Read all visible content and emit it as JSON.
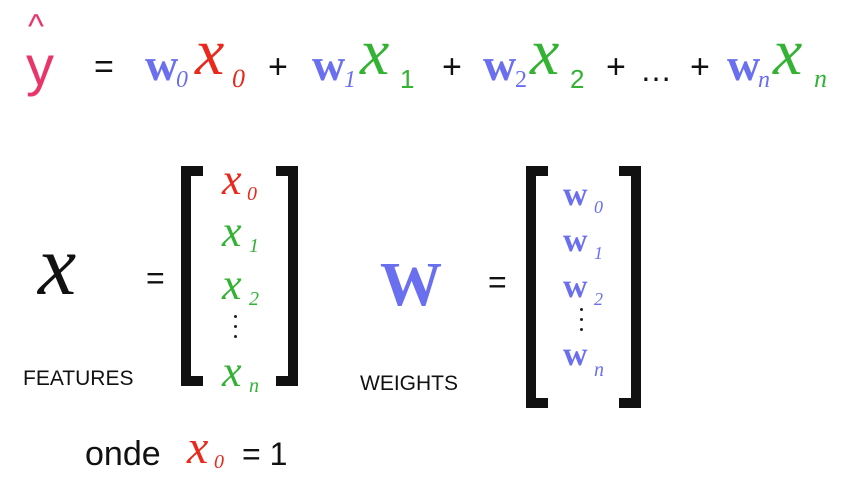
{
  "equation": {
    "yhat": "y",
    "hat": "^",
    "equals": "=",
    "plus": "+",
    "ellipsis": "…",
    "w": "w",
    "x": "x",
    "sub0": "0",
    "sub1": "1",
    "sub2": "2",
    "subn": "n"
  },
  "features": {
    "symbol": "x",
    "equals": "=",
    "label": "FEATURES",
    "items": [
      {
        "base": "x",
        "sub": "0"
      },
      {
        "base": "x",
        "sub": "1"
      },
      {
        "base": "x",
        "sub": "2"
      },
      {
        "base": "x",
        "sub": "n"
      }
    ]
  },
  "weights": {
    "symbol": "W",
    "equals": "=",
    "label": "WEIGHTS",
    "items": [
      {
        "base": "w",
        "sub": "0"
      },
      {
        "base": "w",
        "sub": "1"
      },
      {
        "base": "w",
        "sub": "2"
      },
      {
        "base": "w",
        "sub": "n"
      }
    ]
  },
  "note": {
    "prefix": "onde",
    "var": "x",
    "sub": "0",
    "suffix": "= 1"
  },
  "colors": {
    "weight_blue": "#6a6ff0",
    "x0_red": "#e8291c",
    "x_green": "#34b234",
    "yhat_pink": "#e8356a"
  }
}
